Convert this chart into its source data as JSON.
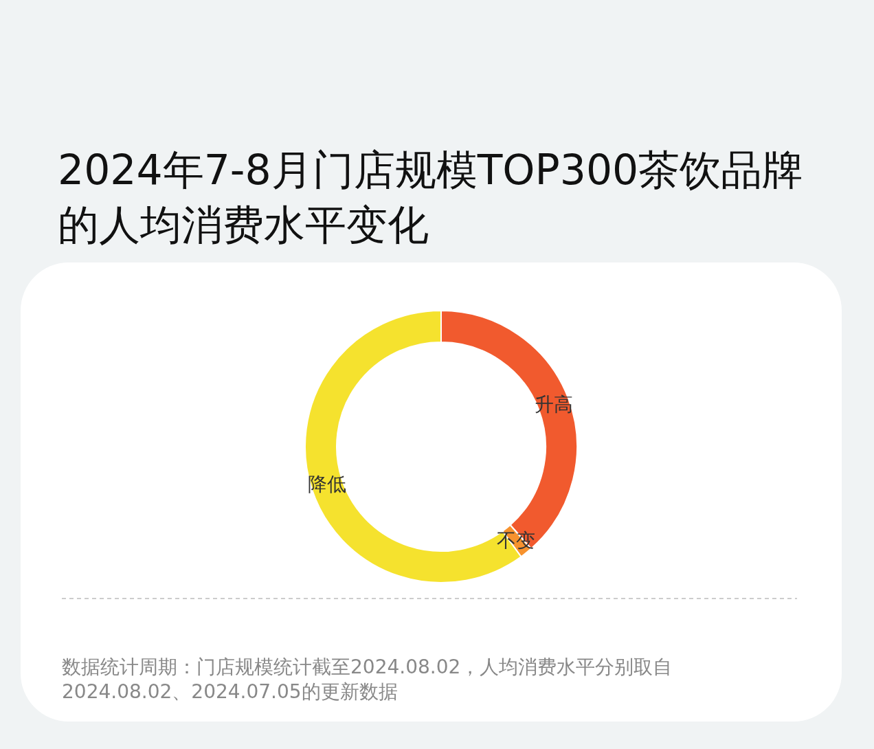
{
  "chart_data": {
    "type": "donut",
    "title": "2024年7-8月门店规模TOP300茶饮品牌的人均消费水平变化",
    "categories": [
      "升高",
      "不变",
      "降低"
    ],
    "values": [
      38.5,
      1.5,
      60
    ],
    "colors": [
      "#f15a2e",
      "#f7922e",
      "#f5e22e"
    ],
    "annotations": [
      "数据统计周期：门店规模统计截至2024.08.02，人均消费水平分别取自2024.08.02、2024.07.05的更新数据"
    ]
  }
}
